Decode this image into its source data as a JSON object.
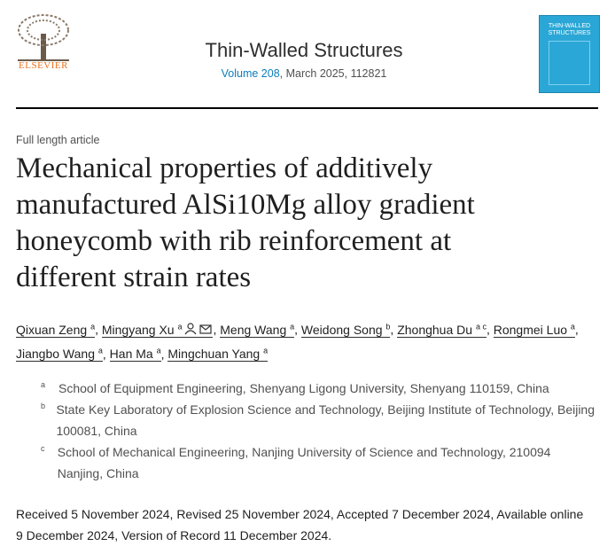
{
  "header": {
    "publisher": "ELSEVIER",
    "journal": "Thin-Walled Structures",
    "volume": "Volume 208",
    "issue_info": ", March 2025, 112821",
    "cover_title": "THIN-WALLED STRUCTURES"
  },
  "article_type": "Full length article",
  "title": "Mechanical properties of additively manufactured AlSi10Mg alloy gradient honeycomb with rib reinforcement at different strain rates",
  "authors": [
    {
      "name": "Qixuan Zeng",
      "affiliation": "a",
      "suffix": ","
    },
    {
      "name": "Mingyang Xu",
      "affiliation": "a",
      "suffix": ","
    },
    {
      "name": "Meng Wang",
      "affiliation": "a",
      "suffix": ","
    },
    {
      "name": "Weidong Song",
      "affiliation": "b",
      "suffix": ","
    },
    {
      "name": "Zhonghua Du",
      "affiliation": "a c",
      "suffix": ","
    },
    {
      "name": "Rongmei Luo",
      "affiliation": "a",
      "suffix": ","
    },
    {
      "name": "Jiangbo Wang",
      "affiliation": "a",
      "suffix": ","
    },
    {
      "name": "Han Ma",
      "affiliation": "a",
      "suffix": ","
    },
    {
      "name": "Mingchuan Yang",
      "affiliation": "a"
    }
  ],
  "affiliations": [
    {
      "label": "a",
      "text": "School of Equipment Engineering, Shenyang Ligong University, Shenyang 110159, China"
    },
    {
      "label": "b",
      "text": "State Key Laboratory of Explosion Science and Technology, Beijing Institute of Technology, Beijing 100081, China"
    },
    {
      "label": "c",
      "text": "School of Mechanical Engineering, Nanjing University of Science and Technology, 210094 Nanjing, China"
    }
  ],
  "dates": "Received 5 November 2024, Revised 25 November 2024, Accepted 7 December 2024, Available online 9 December 2024, Version of Record 11 December 2024."
}
